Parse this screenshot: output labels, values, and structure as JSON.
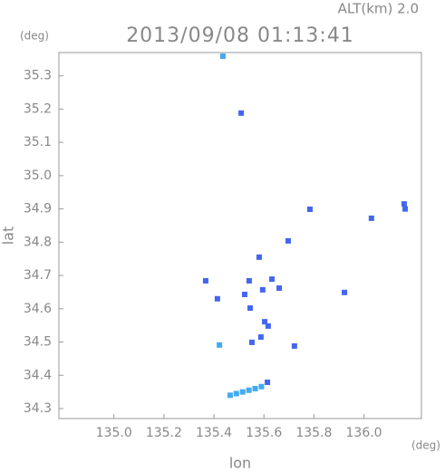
{
  "chart_data": {
    "type": "scatter",
    "title": "2013/09/08 01:13:41",
    "subtitle": "ALT(km) 2.0",
    "x_label": "lon",
    "y_label": "lat",
    "x_unit": "(deg)",
    "y_unit": "(deg)",
    "xlim": [
      134.78,
      136.23
    ],
    "ylim": [
      34.27,
      35.37
    ],
    "xticks": [
      {
        "value": 135.0,
        "label": "135.0"
      },
      135.2,
      135.4,
      135.6,
      135.8,
      {
        "value": 136.0,
        "label": "136.0"
      }
    ],
    "yticks": [
      {
        "value": 34.3,
        "label": "34.3"
      },
      {
        "value": 34.4,
        "label": "34.4"
      },
      {
        "value": 34.5,
        "label": "34.5"
      },
      {
        "value": 34.6,
        "label": "34.6"
      },
      {
        "value": 34.7,
        "label": "34.7"
      },
      {
        "value": 34.8,
        "label": "34.8"
      },
      {
        "value": 34.9,
        "label": "34.9"
      },
      {
        "value": 35.0,
        "label": "35.0"
      },
      {
        "value": 35.1,
        "label": "35.1"
      },
      {
        "value": 35.2,
        "label": "35.2"
      },
      {
        "value": 35.3,
        "label": "35.3"
      }
    ],
    "series": [
      {
        "color": "#4466ee",
        "x": [
          135.509,
          135.784,
          136.03,
          136.161,
          136.165,
          135.581,
          135.367,
          135.414,
          135.541,
          135.632,
          135.661,
          135.595,
          135.523,
          135.922,
          135.545,
          135.603,
          135.617,
          135.588,
          135.552,
          135.722,
          135.614,
          135.697
        ],
        "values": [
          35.188,
          34.899,
          34.872,
          34.915,
          34.9,
          34.755,
          34.684,
          34.63,
          34.684,
          34.689,
          34.662,
          34.657,
          34.643,
          34.649,
          34.602,
          34.561,
          34.548,
          34.515,
          34.499,
          34.488,
          34.379,
          34.804
        ]
      },
      {
        "color": "#44aaee",
        "x": [
          135.436,
          135.422,
          135.465,
          135.49,
          135.515,
          135.54,
          135.565,
          135.59
        ],
        "values": [
          35.359,
          34.491,
          34.34,
          34.345,
          34.35,
          34.355,
          34.36,
          34.366
        ]
      }
    ]
  }
}
